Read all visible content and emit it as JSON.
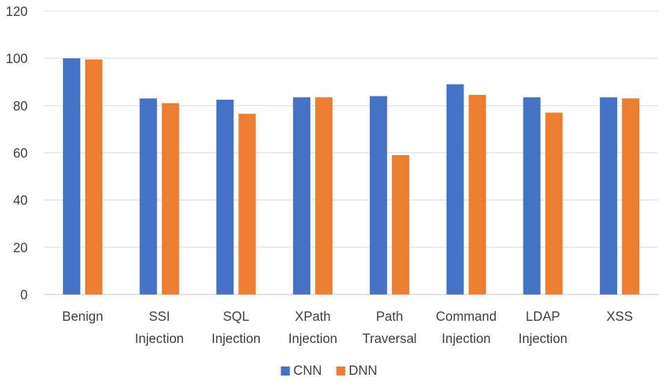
{
  "chart_data": {
    "type": "bar",
    "title": "",
    "xlabel": "",
    "ylabel": "",
    "ylim": [
      0,
      120
    ],
    "yticks": [
      0,
      20,
      40,
      60,
      80,
      100,
      120
    ],
    "grid": true,
    "legend_position": "bottom",
    "categories": [
      [
        "Benign"
      ],
      [
        "SSI",
        "Injection"
      ],
      [
        "SQL",
        "Injection"
      ],
      [
        "XPath",
        "Injection"
      ],
      [
        "Path",
        "Traversal"
      ],
      [
        "Command",
        "Injection"
      ],
      [
        "LDAP",
        "Injection"
      ],
      [
        "XSS"
      ]
    ],
    "series": [
      {
        "name": "CNN",
        "color": "#4472C4",
        "values": [
          100,
          83,
          82.5,
          83.5,
          84,
          89,
          83.5,
          83.5
        ]
      },
      {
        "name": "DNN",
        "color": "#ED7D31",
        "values": [
          99.5,
          81,
          76.5,
          83.5,
          59,
          84.5,
          77,
          83
        ]
      }
    ]
  }
}
